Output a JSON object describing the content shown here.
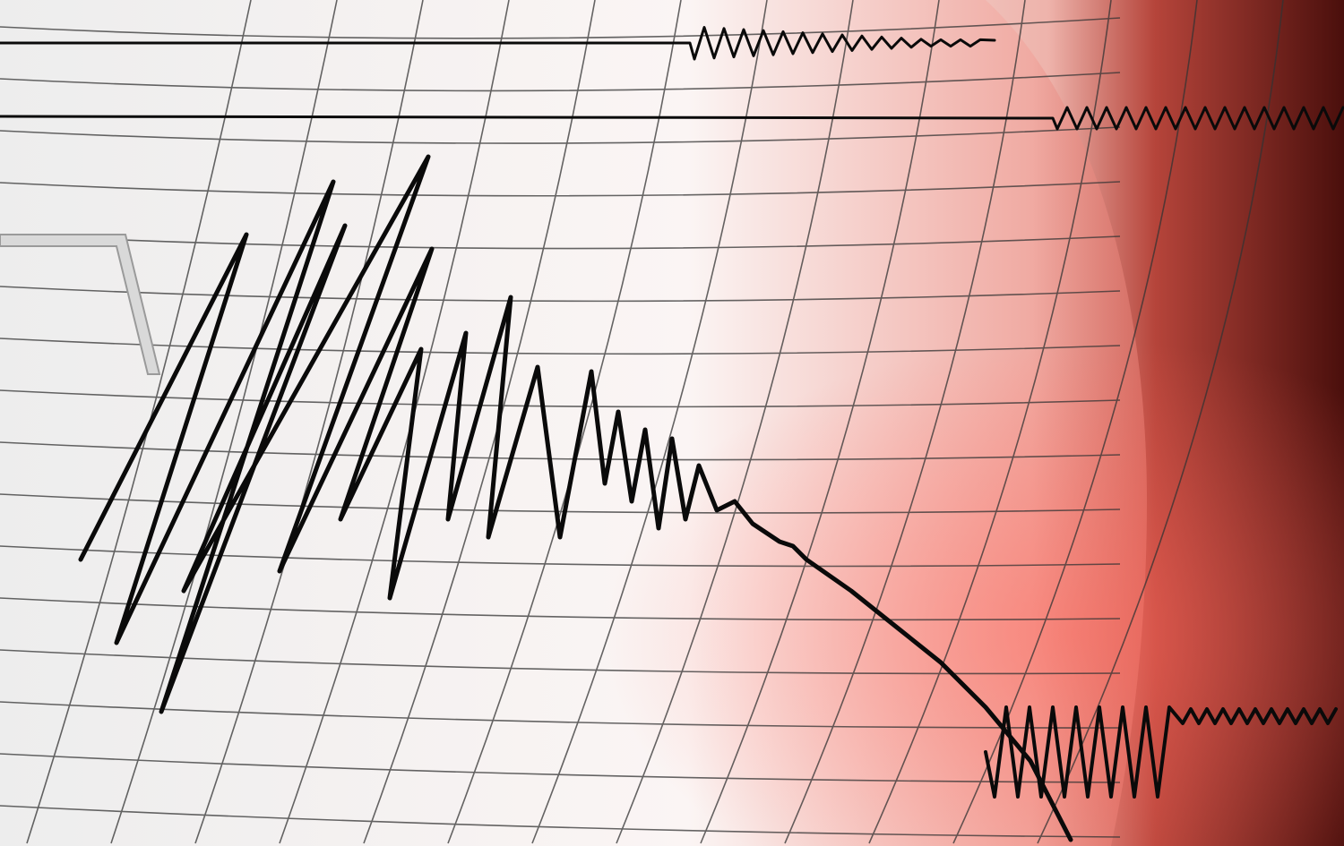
{
  "scene": {
    "subject": "seismograph",
    "colors": {
      "paper": "#f4f0ef",
      "paper_tint": "#e8a8a2",
      "background_right": "#5a1410",
      "grid": "#2a2a2a",
      "trace": "#0a0a0a",
      "stylus": "#d8d8d8"
    }
  }
}
